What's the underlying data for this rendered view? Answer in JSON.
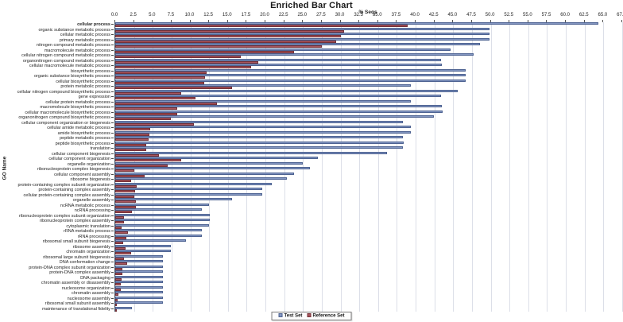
{
  "title": "Enriched Bar Chart",
  "axes": {
    "x_label": "% Seqs",
    "y_label": "GO Name"
  },
  "colors": {
    "test_fill": "#8396c1",
    "test_border": "#4e6392",
    "ref_fill": "#a8555d",
    "ref_border": "#753138",
    "gridline": "#dcdfe8",
    "spine": "#4d5a6a"
  },
  "legend": {
    "items": [
      {
        "label": "Test Set",
        "color": "#8396c1"
      },
      {
        "label": "Reference Set",
        "color": "#a8555d"
      }
    ],
    "position": "bottom-center"
  },
  "chart_data": {
    "type": "bar",
    "orientation": "horizontal",
    "title": "Enriched Bar Chart",
    "xlabel": "% Seqs",
    "ylabel": "GO Name",
    "xlim": [
      0,
      67.5
    ],
    "xticks": [
      0.0,
      2.5,
      5.0,
      7.5,
      10.0,
      12.5,
      15.0,
      17.5,
      20.0,
      22.5,
      25.0,
      27.5,
      30.0,
      32.5,
      35.0,
      37.5,
      40.0,
      42.5,
      45.0,
      47.5,
      50.0,
      52.5,
      55.0,
      57.5,
      60.0,
      62.5,
      65.0,
      67.5
    ],
    "grid": true,
    "legend_position": "bottom",
    "categories": [
      "cellular process",
      "organic substance metabolic process",
      "cellular metabolic process",
      "primary metabolic process",
      "nitrogen compound metabolic process",
      "macromolecule metabolic process",
      "cellular nitrogen compound metabolic process",
      "organonitrogen compound metabolic process",
      "cellular macromolecule metabolic process",
      "biosynthetic process",
      "organic substance biosynthetic process",
      "cellular biosynthetic process",
      "protein metabolic process",
      "cellular nitrogen compound biosynthetic process",
      "gene expression",
      "cellular protein metabolic process",
      "macromolecule biosynthetic process",
      "cellular macromolecule biosynthetic process",
      "organonitrogen compound biosynthetic process",
      "cellular component organization or biogenesis",
      "cellular amide metabolic process",
      "amide biosynthetic process",
      "peptide metabolic process",
      "peptide biosynthetic process",
      "translation",
      "cellular component biogenesis",
      "cellular component organization",
      "organelle organization",
      "ribonucleoprotein complex biogenesis",
      "cellular component assembly",
      "ribosome biogenesis",
      "protein-containing complex subunit organization",
      "protein-containing complex assembly",
      "cellular protein-containing complex assembly",
      "organelle assembly",
      "ncRNA metabolic process",
      "ncRNA processing",
      "ribonucleoprotein complex subunit organization",
      "ribonucleoprotein complex assembly",
      "cytoplasmic translation",
      "rRNA metabolic process",
      "rRNA processing",
      "ribosomal small subunit biogenesis",
      "ribosome assembly",
      "chromatin organization",
      "ribosomal large subunit biogenesis",
      "DNA conformation change",
      "protein-DNA complex subunit organization",
      "protein-DNA complex assembly",
      "DNA packaging",
      "chromatin assembly or disassembly",
      "nucleosome organization",
      "chromatin assembly",
      "nucleosome assembly",
      "ribosomal small subunit assembly",
      "maintenance of translational fidelity"
    ],
    "series": [
      {
        "name": "Test Set",
        "color": "#8396c1",
        "values": [
          64.3,
          49.8,
          49.8,
          49.8,
          48.6,
          44.6,
          47.7,
          43.4,
          43.5,
          46.7,
          46.7,
          46.7,
          39.4,
          45.6,
          43.4,
          39.4,
          43.5,
          43.6,
          42.4,
          38.3,
          39.4,
          39.4,
          38.3,
          38.4,
          38.3,
          36.2,
          27.0,
          25.0,
          25.9,
          23.8,
          22.9,
          20.8,
          19.6,
          19.6,
          15.5,
          12.5,
          11.5,
          12.6,
          12.6,
          12.5,
          11.5,
          11.5,
          9.4,
          7.4,
          7.4,
          6.4,
          6.4,
          6.4,
          6.4,
          6.4,
          6.4,
          6.4,
          6.4,
          6.4,
          6.4,
          2.2
        ]
      },
      {
        "name": "Reference Set",
        "color": "#a8555d",
        "values": [
          38.9,
          30.5,
          30.0,
          29.4,
          27.5,
          23.8,
          16.7,
          19.0,
          18.1,
          12.2,
          12.0,
          11.8,
          15.5,
          8.8,
          10.7,
          13.5,
          8.3,
          8.2,
          7.4,
          10.5,
          4.7,
          4.5,
          4.4,
          4.1,
          4.1,
          5.8,
          8.8,
          7.0,
          2.5,
          3.9,
          2.1,
          2.9,
          2.6,
          2.5,
          2.7,
          2.7,
          2.2,
          1.2,
          1.2,
          0.8,
          1.7,
          1.5,
          1.1,
          1.4,
          2.1,
          1.2,
          1.6,
          1.0,
          0.9,
          0.8,
          0.7,
          0.7,
          0.4,
          0.3,
          0.2,
          0.1
        ]
      }
    ]
  }
}
